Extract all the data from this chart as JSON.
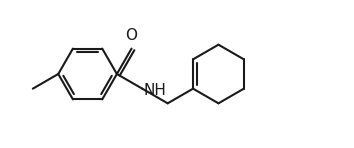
{
  "background_color": "#ffffff",
  "line_color": "#1a1a1a",
  "line_width": 1.5,
  "text_color": "#1a1a1a",
  "font_size": 11,
  "figsize": [
    3.54,
    1.48
  ],
  "dpi": 100,
  "xlim": [
    0.0,
    10.5
  ],
  "ylim": [
    -0.5,
    4.5
  ]
}
